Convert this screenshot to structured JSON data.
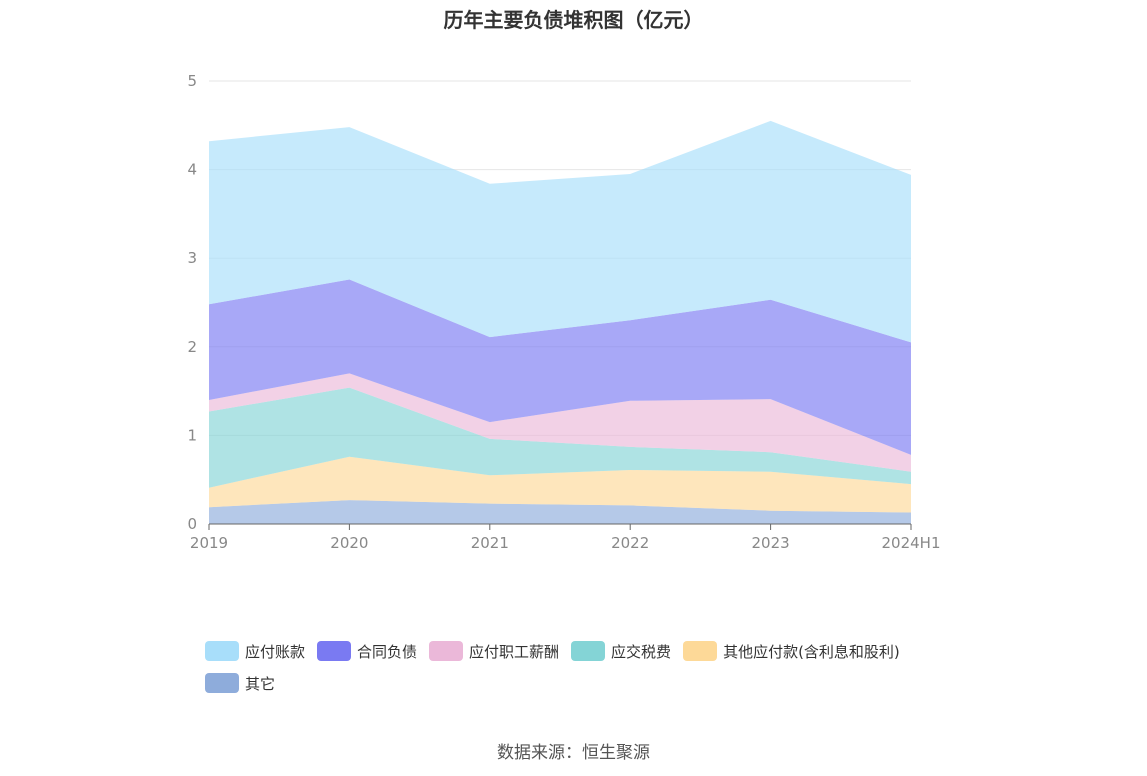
{
  "title": "历年主要负债堆积图（亿元）",
  "source": "数据来源：恒生聚源",
  "colors": {
    "应付账款": "#a8defa",
    "合同负债": "#7a7af2",
    "应付职工薪酬": "#ebb8d9",
    "应交税费": "#84d4d6",
    "其他应付款(含利息和股利)": "#fdd998",
    "其它": "#8eacdb"
  },
  "chart_data": {
    "type": "area",
    "stacked": true,
    "categories": [
      "2019",
      "2020",
      "2021",
      "2022",
      "2023",
      "2024H1"
    ],
    "ylim": [
      0,
      5
    ],
    "yticks": [
      "0",
      "1",
      "2",
      "3",
      "4",
      "5"
    ],
    "grid": true,
    "legend_position": "bottom",
    "series": [
      {
        "name": "其它",
        "values": [
          0.19,
          0.27,
          0.23,
          0.21,
          0.15,
          0.13
        ]
      },
      {
        "name": "其他应付款(含利息和股利)",
        "values": [
          0.22,
          0.49,
          0.32,
          0.4,
          0.44,
          0.32
        ]
      },
      {
        "name": "应交税费",
        "values": [
          0.86,
          0.78,
          0.41,
          0.26,
          0.22,
          0.14
        ]
      },
      {
        "name": "应付职工薪酬",
        "values": [
          0.13,
          0.16,
          0.19,
          0.52,
          0.6,
          0.19
        ]
      },
      {
        "name": "合同负债",
        "values": [
          1.08,
          1.06,
          0.96,
          0.91,
          1.12,
          1.27
        ]
      },
      {
        "name": "应付账款",
        "values": [
          1.84,
          1.72,
          1.73,
          1.65,
          2.02,
          1.89
        ]
      }
    ],
    "legend": [
      "应付账款",
      "合同负债",
      "应付职工薪酬",
      "应交税费",
      "其他应付款(含利息和股利)",
      "其它"
    ]
  }
}
